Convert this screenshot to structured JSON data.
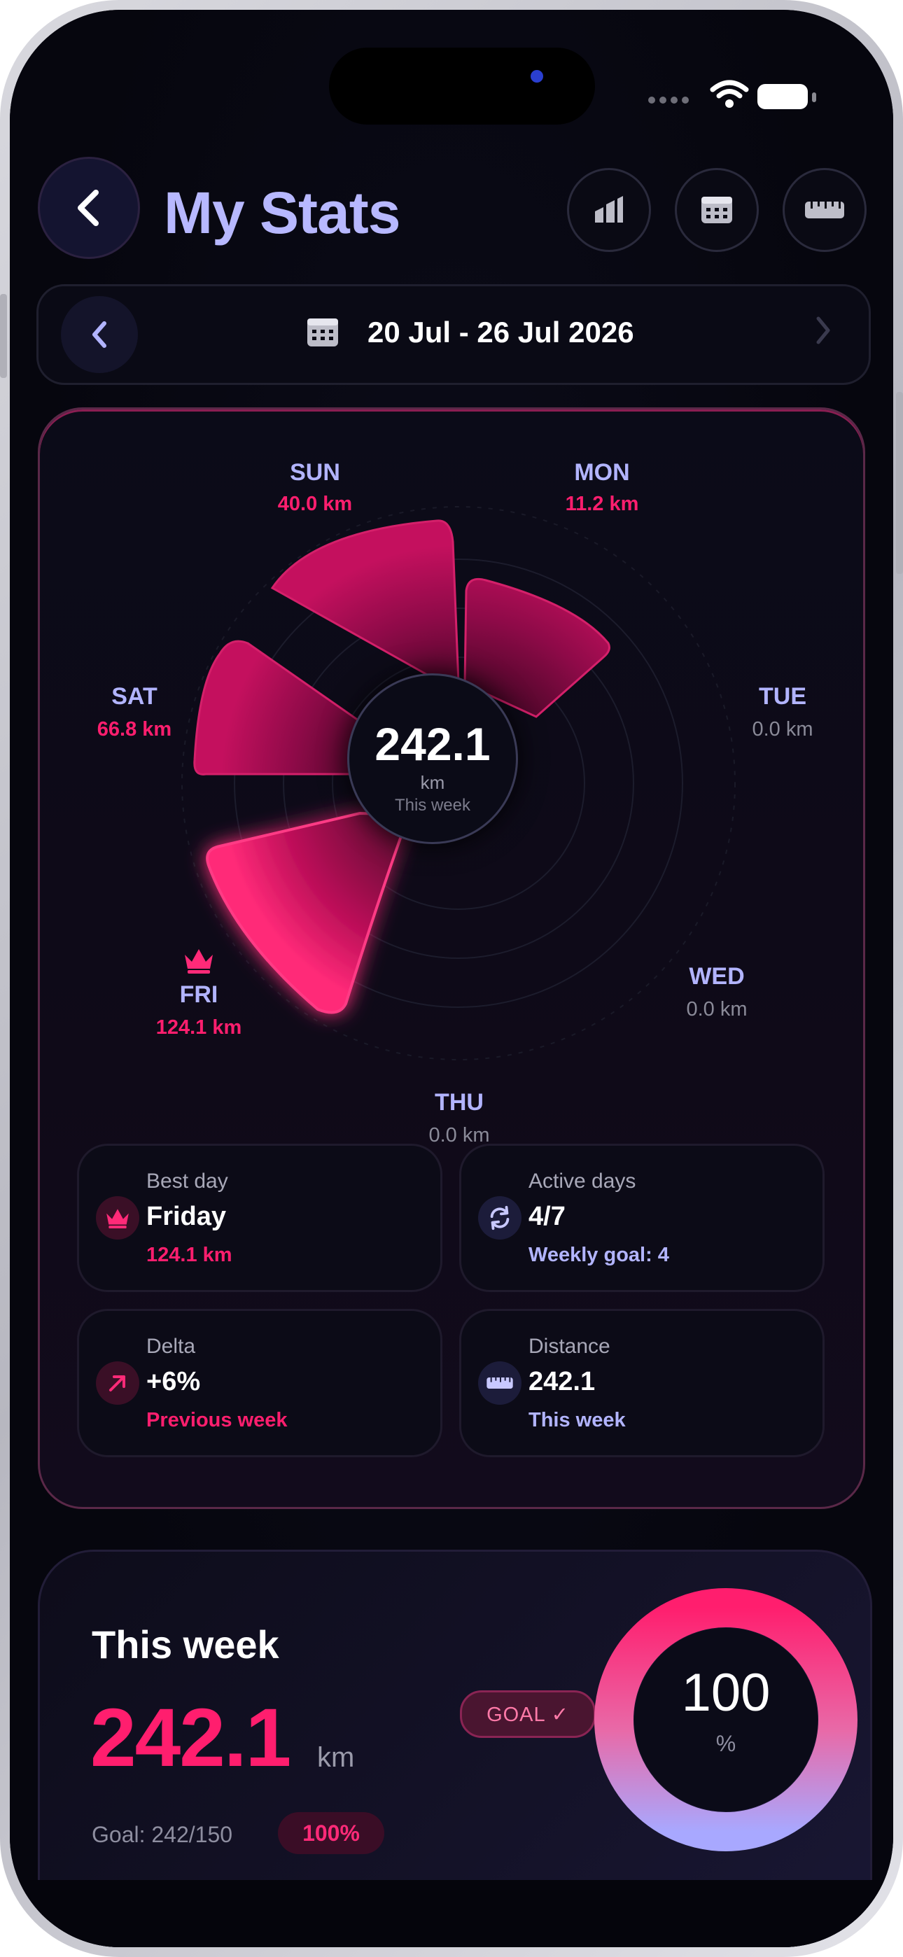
{
  "header": {
    "title": "My Stats"
  },
  "date_range": {
    "label": "20 Jul - 26 Jul 2026"
  },
  "radial": {
    "total": "242.1",
    "unit": "km",
    "caption": "This week",
    "days": [
      {
        "name": "SUN",
        "value": "40.0 km"
      },
      {
        "name": "MON",
        "value": "11.2 km"
      },
      {
        "name": "TUE",
        "value": "0.0 km"
      },
      {
        "name": "WED",
        "value": "0.0 km"
      },
      {
        "name": "THU",
        "value": "0.0 km"
      },
      {
        "name": "FRI",
        "value": "124.1 km"
      },
      {
        "name": "SAT",
        "value": "66.8 km"
      }
    ]
  },
  "tiles": {
    "best_day": {
      "label": "Best day",
      "value": "Friday",
      "sub": "124.1 km"
    },
    "active_days": {
      "label": "Active days",
      "value": "4/7",
      "sub": "Weekly goal: 4"
    },
    "delta": {
      "label": "Delta",
      "value": "+6%",
      "sub": "Previous week"
    },
    "distance": {
      "label": "Distance",
      "value": "242.1",
      "sub": "This week"
    }
  },
  "week": {
    "title": "This week",
    "value": "242.1",
    "unit": "km",
    "goal_text": "Goal: 242/150",
    "pct_pill": "100%",
    "goal_badge": "GOAL ✓",
    "ring_value": "100",
    "ring_unit": "%"
  },
  "colors": {
    "accent_pink": "#ff1e6e",
    "accent_lavender": "#b2b4ff",
    "background": "#06060e"
  },
  "icons": [
    "chevron-left-icon",
    "chart-icon",
    "calendar-icon",
    "ruler-icon",
    "crown-icon",
    "refresh-icon",
    "arrow-up-right-icon",
    "wifi-icon",
    "battery-icon"
  ]
}
